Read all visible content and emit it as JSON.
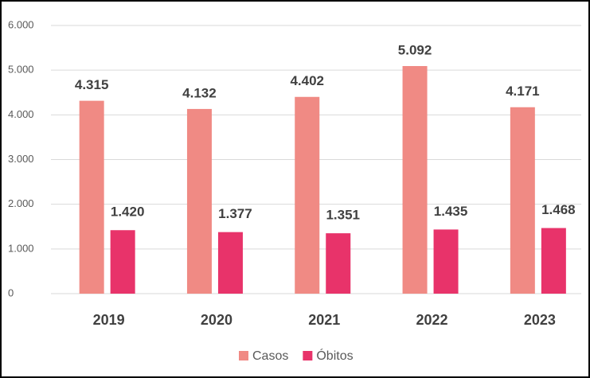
{
  "chart_data": {
    "type": "bar",
    "categories": [
      "2019",
      "2020",
      "2021",
      "2022",
      "2023"
    ],
    "series": [
      {
        "name": "Casos",
        "color": "#f08a84",
        "values": [
          4315,
          4132,
          4402,
          5092,
          4171
        ],
        "value_labels": [
          "4.315",
          "4.132",
          "4.402",
          "5.092",
          "4.171"
        ]
      },
      {
        "name": "Óbitos",
        "color": "#e8336a",
        "values": [
          1420,
          1377,
          1351,
          1435,
          1468
        ],
        "value_labels": [
          "1.420",
          "1.377",
          "1.351",
          "1.435",
          "1.468"
        ]
      }
    ],
    "ylim": [
      0,
      6000
    ],
    "yticks": [
      {
        "value": 0,
        "label": "0"
      },
      {
        "value": 1000,
        "label": "1.000"
      },
      {
        "value": 2000,
        "label": "2.000"
      },
      {
        "value": 3000,
        "label": "3.000"
      },
      {
        "value": 4000,
        "label": "4.000"
      },
      {
        "value": 5000,
        "label": "5.000"
      },
      {
        "value": 6000,
        "label": "6.000"
      }
    ],
    "grid": true,
    "legend": "bottom"
  }
}
